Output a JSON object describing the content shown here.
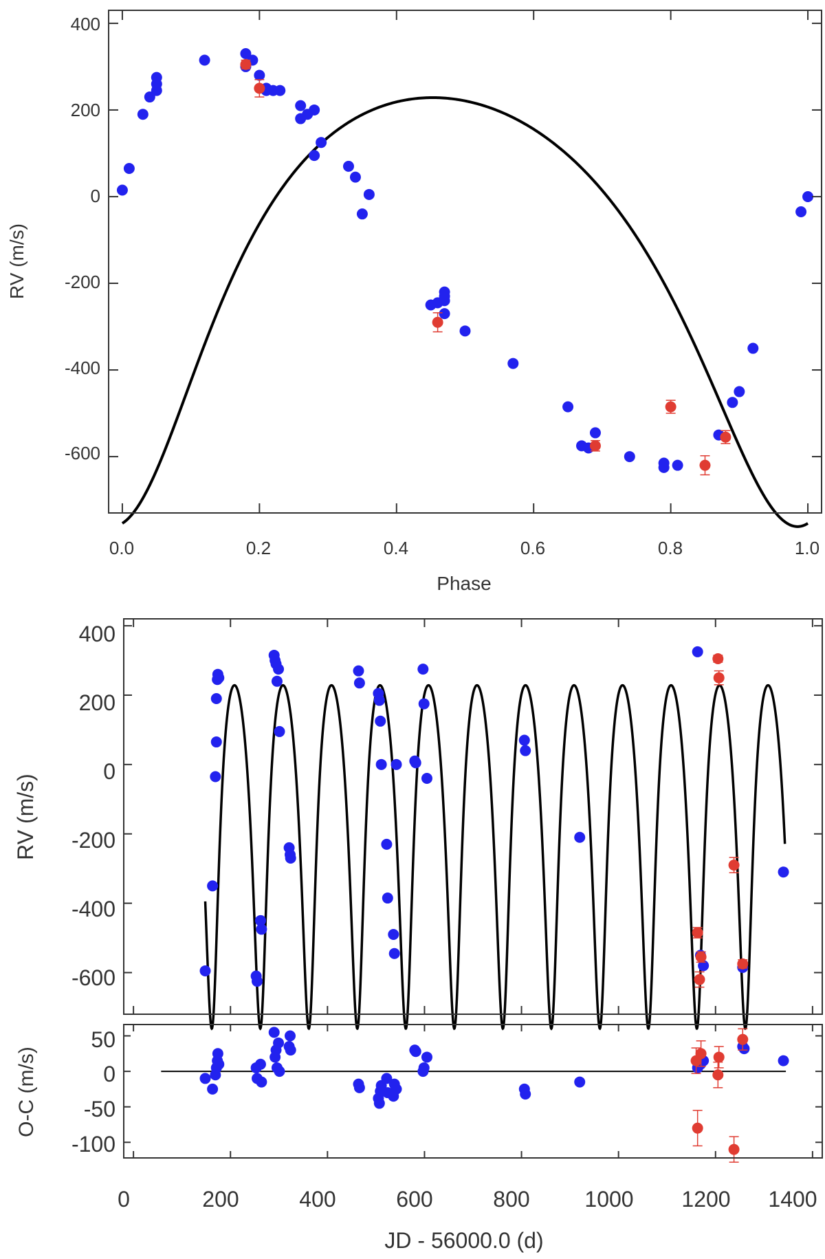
{
  "colors": {
    "ground": "#2222ee",
    "space": "#e03c32",
    "model": "#000000",
    "axis": "#333333"
  },
  "chart_data": [
    {
      "type": "scatter",
      "title": "",
      "xlabel": "Phase",
      "ylabel": "RV (m/s)",
      "xlim": [
        -0.02,
        1.02
      ],
      "ylim": [
        -730,
        430
      ],
      "xticks": [
        "0.0",
        "0.2",
        "0.4",
        "0.6",
        "0.8",
        "1.0"
      ],
      "yticks": [
        "400",
        "200",
        "0",
        "-200",
        "-400",
        "-600"
      ],
      "model": {
        "K": 495,
        "e": 0.28,
        "omega": 190,
        "offset": -130,
        "type": "keplerian-phase"
      },
      "series": [
        {
          "name": "ground",
          "color": "#2222ee",
          "x": [
            0.0,
            0.01,
            0.03,
            0.04,
            0.05,
            0.05,
            0.05,
            0.12,
            0.18,
            0.18,
            0.19,
            0.2,
            0.21,
            0.21,
            0.22,
            0.23,
            0.26,
            0.26,
            0.27,
            0.28,
            0.28,
            0.29,
            0.33,
            0.34,
            0.35,
            0.36,
            0.45,
            0.46,
            0.47,
            0.47,
            0.47,
            0.47,
            0.5,
            0.57,
            0.65,
            0.67,
            0.68,
            0.69,
            0.74,
            0.79,
            0.79,
            0.81,
            0.87,
            0.89,
            0.9,
            0.92,
            0.99,
            1.0
          ],
          "y": [
            15,
            65,
            190,
            230,
            275,
            260,
            245,
            315,
            330,
            300,
            315,
            280,
            250,
            245,
            245,
            245,
            180,
            210,
            190,
            200,
            95,
            125,
            70,
            45,
            -40,
            5,
            -250,
            -245,
            -230,
            -240,
            -270,
            -220,
            -310,
            -385,
            -485,
            -575,
            -580,
            -545,
            -600,
            -625,
            -615,
            -620,
            -550,
            -475,
            -450,
            -350,
            -35,
            0
          ]
        },
        {
          "name": "space",
          "color": "#e03c32",
          "x": [
            0.18,
            0.2,
            0.46,
            0.69,
            0.8,
            0.85,
            0.88
          ],
          "y": [
            305,
            250,
            -290,
            -575,
            -485,
            -620,
            -555
          ],
          "err": [
            10,
            20,
            22,
            12,
            15,
            22,
            15
          ]
        }
      ]
    },
    {
      "type": "scatter",
      "title": "",
      "xlabel": "",
      "ylabel": "RV (m/s)",
      "xlim": [
        -20,
        1420
      ],
      "ylim": [
        -720,
        420
      ],
      "yticks": [
        "400",
        "200",
        "0",
        "-200",
        "-400",
        "-600"
      ],
      "model": {
        "K": 495,
        "e": 0.28,
        "omega": 190,
        "offset": -130,
        "period": 100,
        "t_peri": 163,
        "t_start": 148,
        "t_end": 1343
      },
      "series": [
        {
          "name": "ground",
          "color": "#2222ee",
          "x": [
            148,
            163,
            169,
            171,
            171,
            173,
            174,
            176,
            253,
            255,
            262,
            264,
            290,
            292,
            294,
            296,
            299,
            301,
            321,
            323,
            324,
            464,
            466,
            505,
            507,
            509,
            511,
            522,
            524,
            536,
            538,
            542,
            580,
            582,
            597,
            599,
            605,
            806,
            808,
            920,
            1163,
            1169,
            1175,
            1256,
            1340
          ],
          "y": [
            -595,
            -350,
            -35,
            65,
            190,
            245,
            260,
            250,
            -610,
            -625,
            -450,
            -475,
            315,
            300,
            290,
            240,
            275,
            95,
            -240,
            -260,
            -270,
            270,
            235,
            205,
            185,
            125,
            0,
            -230,
            -385,
            -490,
            -545,
            0,
            10,
            5,
            275,
            175,
            -40,
            70,
            40,
            -210,
            325,
            -550,
            -580,
            -585,
            -310
          ]
        },
        {
          "name": "space",
          "color": "#e03c32",
          "x": [
            1163,
            1167,
            1170,
            1205,
            1207,
            1238,
            1256
          ],
          "y": [
            -485,
            -620,
            -555,
            305,
            250,
            -290,
            -575
          ],
          "err": [
            15,
            22,
            15,
            10,
            20,
            22,
            12
          ]
        }
      ]
    },
    {
      "type": "scatter",
      "title": "",
      "xlabel": "JD - 56000.0 (d)",
      "ylabel": "O-C (m/s)",
      "xlim": [
        -20,
        1420
      ],
      "ylim": [
        -122,
        66
      ],
      "xticks": [
        "0",
        "200",
        "400",
        "600",
        "800",
        "1000",
        "1200",
        "1400"
      ],
      "yticks": [
        "50",
        "0",
        "-50",
        "-100"
      ],
      "zero_line": [
        57,
        1345
      ],
      "series": [
        {
          "name": "ground",
          "color": "#2222ee",
          "x": [
            148,
            163,
            169,
            171,
            173,
            174,
            176,
            253,
            255,
            262,
            264,
            290,
            292,
            294,
            296,
            299,
            301,
            321,
            323,
            324,
            464,
            466,
            505,
            507,
            509,
            511,
            522,
            524,
            536,
            538,
            542,
            580,
            582,
            597,
            599,
            605,
            806,
            808,
            920,
            1163,
            1169,
            1175,
            1256,
            1259,
            1340
          ],
          "y": [
            -10,
            -25,
            -5,
            5,
            15,
            25,
            10,
            5,
            -10,
            10,
            -15,
            55,
            20,
            30,
            5,
            40,
            0,
            35,
            50,
            30,
            -18,
            -23,
            -38,
            -45,
            -28,
            -20,
            -10,
            -30,
            -35,
            -18,
            -25,
            30,
            28,
            0,
            5,
            20,
            -25,
            -32,
            -15,
            5,
            10,
            15,
            35,
            32,
            15
          ]
        },
        {
          "name": "space",
          "color": "#e03c32",
          "x": [
            1160,
            1163,
            1170,
            1205,
            1207,
            1238,
            1256
          ],
          "y": [
            15,
            -80,
            25,
            -5,
            20,
            -110,
            45
          ],
          "err": [
            18,
            25,
            18,
            18,
            15,
            18,
            15
          ]
        }
      ]
    }
  ]
}
